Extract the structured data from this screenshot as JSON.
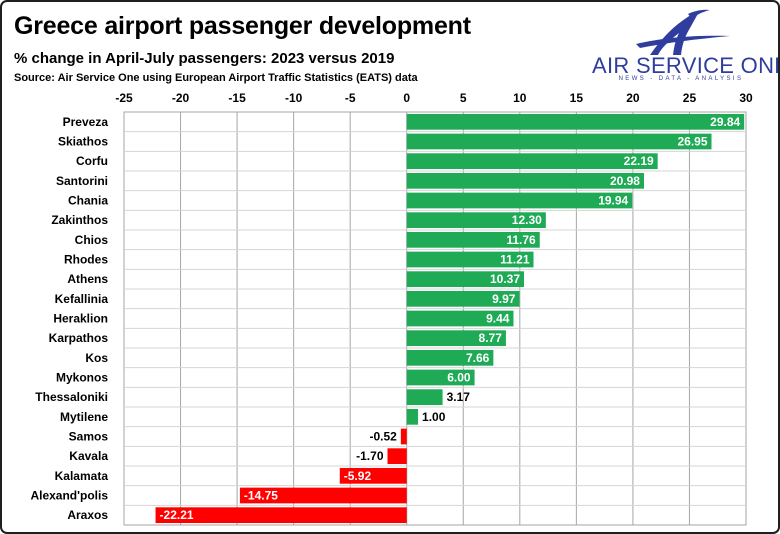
{
  "header": {
    "title": "Greece airport passenger development",
    "subtitle": "% change in April-July passengers: 2023 versus 2019",
    "source": "Source: Air Service One using European Airport Traffic Statistics (EATS) data"
  },
  "logo": {
    "name": "AIR SERVICE ONE",
    "tagline": "NEWS - DATA - ANALYSIS",
    "icon": "stylized-a-plane-icon",
    "color": "#2f3e9e"
  },
  "chart_data": {
    "type": "bar",
    "orientation": "horizontal",
    "categories": [
      "Preveza",
      "Skiathos",
      "Corfu",
      "Santorini",
      "Chania",
      "Zakinthos",
      "Chios",
      "Rhodes",
      "Athens",
      "Kefallinia",
      "Heraklion",
      "Karpathos",
      "Kos",
      "Mykonos",
      "Thessaloniki",
      "Mytilene",
      "Samos",
      "Kavala",
      "Kalamata",
      "Alexand'polis",
      "Araxos"
    ],
    "values": [
      29.84,
      26.95,
      22.19,
      20.98,
      19.94,
      12.3,
      11.76,
      11.21,
      10.37,
      9.97,
      9.44,
      8.77,
      7.66,
      6.0,
      3.17,
      1.0,
      -0.52,
      -1.7,
      -5.92,
      -14.75,
      -22.21
    ],
    "data_labels": [
      "29.84",
      "26.95",
      "22.19",
      "20.98",
      "19.94",
      "12.30",
      "11.76",
      "11.21",
      "10.37",
      "9.97",
      "9.44",
      "8.77",
      "7.66",
      "6.00",
      "3.17",
      "1.00",
      "-0.52",
      "-1.70",
      "-5.92",
      "-14.75",
      "-22.21"
    ],
    "xlim": [
      -25,
      30
    ],
    "x_ticks": [
      -25,
      -20,
      -15,
      -10,
      -5,
      0,
      5,
      10,
      15,
      20,
      25,
      30
    ],
    "x_tick_labels": [
      "-25",
      "-20",
      "-15",
      "-10",
      "-5",
      "0",
      "5",
      "10",
      "15",
      "20",
      "25",
      "30"
    ],
    "axis_position": "top",
    "grid": true,
    "legend": "none",
    "colors": {
      "positive": "#1faa55",
      "negative": "#ff0000",
      "grid": "#a6a6a6",
      "label_on_bar": "#ffffff",
      "label_outside": "#000000"
    }
  }
}
